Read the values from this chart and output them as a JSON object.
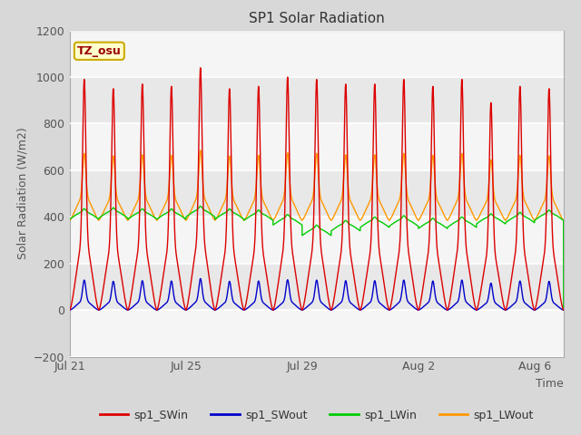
{
  "title": "SP1 Solar Radiation",
  "xlabel": "Time",
  "ylabel": "Solar Radiation (W/m2)",
  "ylim": [
    -200,
    1200
  ],
  "yticks": [
    -200,
    0,
    200,
    400,
    600,
    800,
    1000,
    1200
  ],
  "num_days": 17,
  "points_per_day": 288,
  "sw_in_peaks": [
    990,
    950,
    970,
    960,
    1040,
    950,
    960,
    1000,
    990,
    970,
    970,
    990,
    960,
    990,
    890,
    960,
    950
  ],
  "sw_out_scale": 0.13,
  "lw_in_base_days": [
    390,
    395,
    390,
    390,
    400,
    390,
    385,
    365,
    320,
    340,
    355,
    360,
    350,
    355,
    370,
    375,
    385
  ],
  "lw_in_amp": 25,
  "lw_out_base": 385,
  "lw_out_peak_scale": 0.27,
  "colors": {
    "sp1_SWin": "#dd0000",
    "sp1_SWout": "#0000cc",
    "sp1_LWin": "#00cc00",
    "sp1_LWout": "#ff9900"
  },
  "bg_color": "#d8d8d8",
  "plot_bg": "#f5f5f5",
  "band_color": "#e8e8e8",
  "tz_label": "TZ_osu",
  "tz_box_bg": "#ffffcc",
  "tz_box_edge": "#ccaa00",
  "tz_text_color": "#990000",
  "x_tick_labels": [
    "Jul 21",
    "Jul 25",
    "Jul 29",
    "Aug 2",
    "Aug 6"
  ],
  "x_tick_positions": [
    0,
    4,
    8,
    12,
    16
  ],
  "line_width": 1.0,
  "grid_color": "#cccccc",
  "grid_linewidth": 0.8
}
